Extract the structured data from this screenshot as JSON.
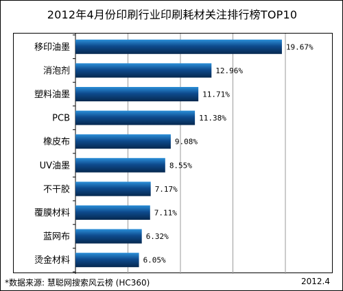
{
  "chart_data": {
    "type": "bar",
    "orientation": "horizontal",
    "title": "2012年4月份印刷行业印刷耗材关注排行榜TOP10",
    "categories": [
      "移印油墨",
      "消泡剂",
      "塑料油墨",
      "PCB",
      "橡皮布",
      "UV油墨",
      "不干胶",
      "覆膜材料",
      "蓝网布",
      "烫金材料"
    ],
    "values": [
      19.67,
      12.96,
      11.71,
      11.38,
      9.08,
      8.55,
      7.17,
      7.11,
      6.32,
      6.05
    ],
    "value_labels": [
      "19.67%",
      "12.96%",
      "11.71%",
      "11.38%",
      "9.08%",
      "8.55%",
      "7.17%",
      "7.11%",
      "6.32%",
      "6.05%"
    ],
    "xlim": [
      0,
      20
    ],
    "xlabel": "",
    "ylabel": "",
    "grid": true,
    "bar_color": "#0e4b8e"
  },
  "footer": {
    "source": "*数据来源: 慧聪网搜索风云榜 (HC360)",
    "date": "2012.4"
  }
}
